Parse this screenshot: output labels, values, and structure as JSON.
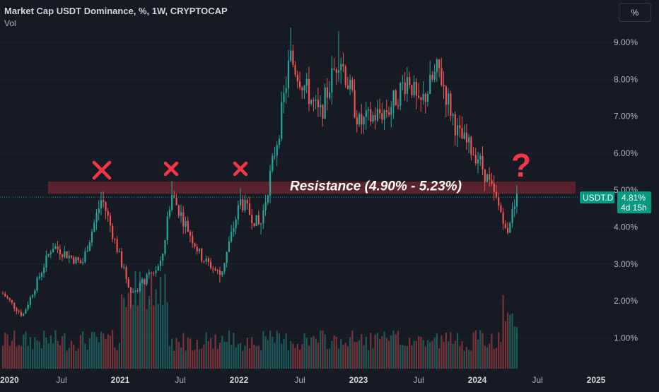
{
  "header": {
    "title": "Market Cap USDT Dominance, %, 1W, CRYPTOCAP",
    "volume_label": "Vol",
    "unit_button": "%"
  },
  "colors": {
    "background": "#161a25",
    "up": "#26a69a",
    "down": "#ef5350",
    "resistance_band": "#6b2631",
    "marker": "#f23645",
    "price_tag": "#089981"
  },
  "annotations": {
    "resistance_label": "Resistance (4.90% - 5.23%)",
    "question_mark": "?",
    "reject_markers": [
      "2020-11",
      "2021-06",
      "2022-01"
    ]
  },
  "price_tag": {
    "symbol": "USDT.D",
    "value": "4.81%",
    "countdown": "4d 15h"
  },
  "chart_data": {
    "type": "candlestick",
    "interval": "1W",
    "y_unit": "%",
    "ylim": [
      0.3,
      10.0
    ],
    "y_ticks": [
      "1.00%",
      "2.00%",
      "3.00%",
      "4.00%",
      "5.00%",
      "6.00%",
      "7.00%",
      "8.00%",
      "9.00%"
    ],
    "y_tick_values": [
      1,
      2,
      3,
      4,
      5,
      6,
      7,
      8,
      9
    ],
    "x_ticks": [
      "2020",
      "Jul",
      "2021",
      "Jul",
      "2022",
      "Jul",
      "2023",
      "Jul",
      "2024",
      "Jul",
      "2025"
    ],
    "resistance_zone": [
      4.9,
      5.23
    ],
    "last_value": 4.81,
    "key_points": [
      {
        "date": "2020-01",
        "close": 2.2
      },
      {
        "date": "2020-03",
        "close": 1.6
      },
      {
        "date": "2020-06",
        "close": 3.5
      },
      {
        "date": "2020-09",
        "close": 3.0
      },
      {
        "date": "2020-11",
        "close": 4.8,
        "high": 4.95
      },
      {
        "date": "2021-01",
        "close": 3.0
      },
      {
        "date": "2021-02",
        "close": 2.2,
        "low": 1.8
      },
      {
        "date": "2021-05",
        "close": 3.0
      },
      {
        "date": "2021-06",
        "close": 4.9,
        "high": 5.25
      },
      {
        "date": "2021-09",
        "close": 3.2
      },
      {
        "date": "2021-11",
        "close": 2.7,
        "low": 2.5
      },
      {
        "date": "2022-01",
        "close": 4.7,
        "high": 5.05
      },
      {
        "date": "2022-03",
        "close": 4.0,
        "low": 3.8
      },
      {
        "date": "2022-05",
        "close": 6.8
      },
      {
        "date": "2022-06",
        "close": 8.6,
        "high": 9.4
      },
      {
        "date": "2022-09",
        "close": 7.0
      },
      {
        "date": "2022-11",
        "close": 8.7,
        "high": 9.3
      },
      {
        "date": "2023-01",
        "close": 6.8
      },
      {
        "date": "2023-04",
        "close": 7.2
      },
      {
        "date": "2023-06",
        "close": 8.1
      },
      {
        "date": "2023-07",
        "close": 7.2
      },
      {
        "date": "2023-09",
        "close": 8.3
      },
      {
        "date": "2023-11",
        "close": 6.5
      },
      {
        "date": "2024-01",
        "close": 5.9
      },
      {
        "date": "2024-03",
        "close": 4.6
      },
      {
        "date": "2024-04",
        "close": 4.0,
        "low": 3.8
      },
      {
        "date": "2024-05",
        "close": 4.81,
        "high": 5.1
      }
    ]
  }
}
